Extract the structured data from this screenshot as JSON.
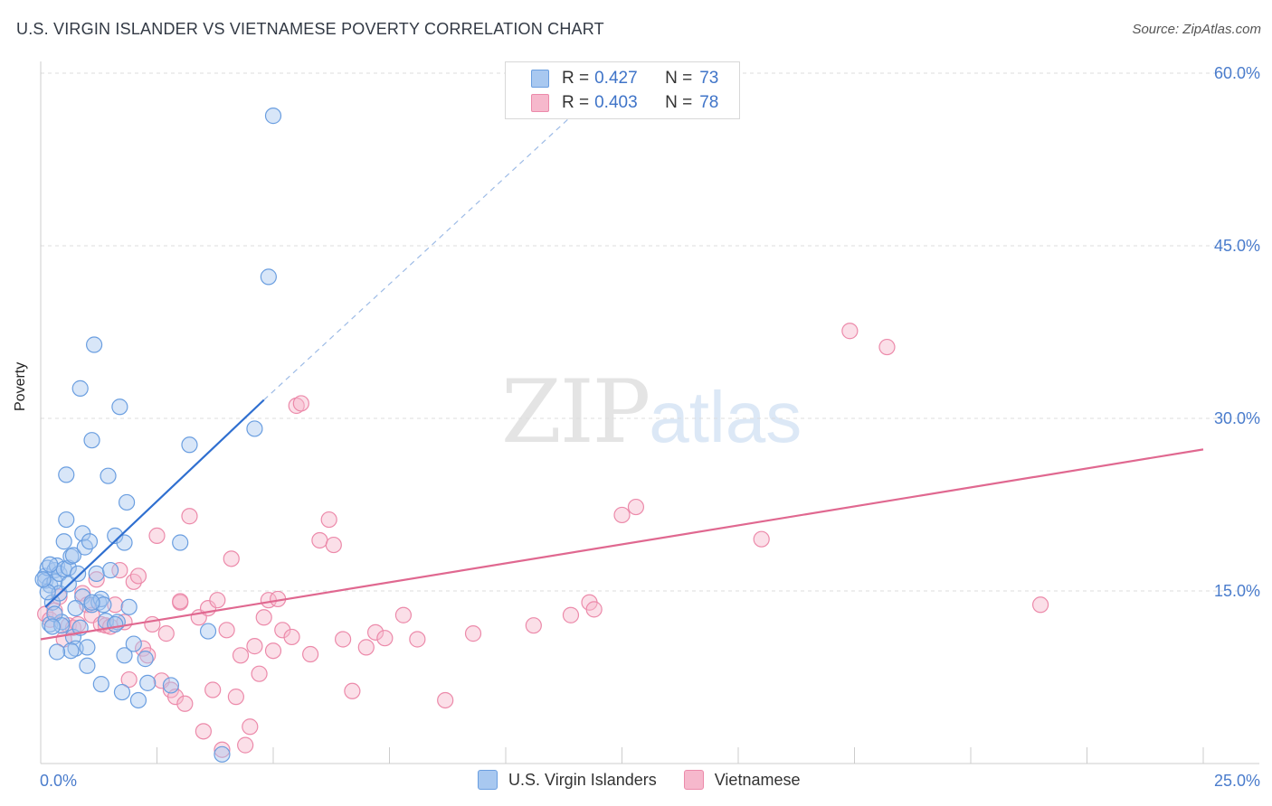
{
  "title": "U.S. VIRGIN ISLANDER VS VIETNAMESE POVERTY CORRELATION CHART",
  "source": "Source: ZipAtlas.com",
  "watermark": {
    "zip": "ZIP",
    "atlas": "atlas"
  },
  "colors": {
    "blue_fill": "#a8c8f0",
    "blue_stroke": "#6a9ee0",
    "blue_line": "#2f6fd0",
    "pink_fill": "#f6b8cc",
    "pink_stroke": "#ec8aaa",
    "pink_line": "#e06890",
    "grid": "#dddddd"
  },
  "legend": {
    "rows": [
      {
        "r_label": "R =",
        "r_value": "0.427",
        "n_label": "N =",
        "n_value": "73",
        "color": "#a8c8f0"
      },
      {
        "r_label": "R =",
        "r_value": "0.403",
        "n_label": "N =",
        "n_value": "78",
        "color": "#f6b8cc"
      }
    ]
  },
  "chart_data": {
    "type": "scatter",
    "title": "U.S. VIRGIN ISLANDER VS VIETNAMESE POVERTY CORRELATION CHART",
    "xlabel": "",
    "ylabel": "Poverty",
    "xlim": [
      0,
      25
    ],
    "ylim": [
      0,
      60
    ],
    "x_ticks": [
      "0.0%",
      "25.0%"
    ],
    "y_ticks": [
      {
        "value": 15,
        "label": "15.0%"
      },
      {
        "value": 30,
        "label": "30.0%"
      },
      {
        "value": 45,
        "label": "45.0%"
      },
      {
        "value": 60,
        "label": "60.0%"
      }
    ],
    "grid": true,
    "legend_position": "top-center",
    "series": [
      {
        "name": "U.S. Virgin Islanders",
        "color": "#a8c8f0",
        "trend": {
          "x": [
            0.1,
            4.8
          ],
          "y": [
            13.6,
            31.6
          ],
          "extend_to_x": 12.6,
          "extend_to_y": 60.7
        },
        "points": [
          [
            0.1,
            16.3
          ],
          [
            0.1,
            15.9
          ],
          [
            0.15,
            17.0
          ],
          [
            0.2,
            15.5
          ],
          [
            0.2,
            12.1
          ],
          [
            0.25,
            14.0
          ],
          [
            0.3,
            16.8
          ],
          [
            0.3,
            15.8
          ],
          [
            0.35,
            17.2
          ],
          [
            0.4,
            16.5
          ],
          [
            0.4,
            14.8
          ],
          [
            0.45,
            12.3
          ],
          [
            0.5,
            16.9
          ],
          [
            0.5,
            19.3
          ],
          [
            0.55,
            21.2
          ],
          [
            0.6,
            17.0
          ],
          [
            0.6,
            15.6
          ],
          [
            0.65,
            18.0
          ],
          [
            0.7,
            18.1
          ],
          [
            0.7,
            11.0
          ],
          [
            0.75,
            10.0
          ],
          [
            0.8,
            16.5
          ],
          [
            0.85,
            11.8
          ],
          [
            0.85,
            32.6
          ],
          [
            0.9,
            20.0
          ],
          [
            0.9,
            14.5
          ],
          [
            0.95,
            18.8
          ],
          [
            1.0,
            8.5
          ],
          [
            1.0,
            10.1
          ],
          [
            1.05,
            19.3
          ],
          [
            1.1,
            28.1
          ],
          [
            1.1,
            13.8
          ],
          [
            1.15,
            36.4
          ],
          [
            1.2,
            16.5
          ],
          [
            1.25,
            14.0
          ],
          [
            1.3,
            14.3
          ],
          [
            1.3,
            6.9
          ],
          [
            1.35,
            13.8
          ],
          [
            1.4,
            12.4
          ],
          [
            1.45,
            25.0
          ],
          [
            1.5,
            16.8
          ],
          [
            1.6,
            19.8
          ],
          [
            1.65,
            12.3
          ],
          [
            1.7,
            31.0
          ],
          [
            1.75,
            6.2
          ],
          [
            1.8,
            9.4
          ],
          [
            1.8,
            19.2
          ],
          [
            1.85,
            22.7
          ],
          [
            1.9,
            13.6
          ],
          [
            2.0,
            10.4
          ],
          [
            2.1,
            5.5
          ],
          [
            2.25,
            9.1
          ],
          [
            2.3,
            7.0
          ],
          [
            2.8,
            6.8
          ],
          [
            3.0,
            19.2
          ],
          [
            3.2,
            27.7
          ],
          [
            3.6,
            11.5
          ],
          [
            3.9,
            0.8
          ],
          [
            4.6,
            29.1
          ],
          [
            4.9,
            42.3
          ],
          [
            5.0,
            56.3
          ],
          [
            0.55,
            25.1
          ],
          [
            0.75,
            13.5
          ],
          [
            0.2,
            17.3
          ],
          [
            0.15,
            14.9
          ],
          [
            0.3,
            13.0
          ],
          [
            0.45,
            12.0
          ],
          [
            0.65,
            9.8
          ],
          [
            1.1,
            14.0
          ],
          [
            0.05,
            16.0
          ],
          [
            0.25,
            11.9
          ],
          [
            1.6,
            12.1
          ],
          [
            0.35,
            9.7
          ]
        ]
      },
      {
        "name": "Vietnamese",
        "color": "#f6b8cc",
        "trend": {
          "x": [
            0.0,
            25.0
          ],
          "y": [
            10.8,
            27.3
          ]
        },
        "points": [
          [
            0.1,
            13.0
          ],
          [
            0.2,
            12.5
          ],
          [
            0.3,
            13.3
          ],
          [
            0.4,
            14.5
          ],
          [
            0.5,
            10.8
          ],
          [
            0.6,
            12.0
          ],
          [
            0.7,
            11.8
          ],
          [
            0.8,
            12.1
          ],
          [
            0.9,
            14.8
          ],
          [
            1.0,
            13.8
          ],
          [
            1.1,
            12.9
          ],
          [
            1.2,
            16.0
          ],
          [
            1.3,
            12.1
          ],
          [
            1.4,
            12.0
          ],
          [
            1.5,
            11.9
          ],
          [
            1.6,
            13.8
          ],
          [
            1.7,
            16.8
          ],
          [
            1.8,
            12.3
          ],
          [
            1.9,
            7.3
          ],
          [
            2.0,
            15.8
          ],
          [
            2.1,
            16.3
          ],
          [
            2.2,
            10.0
          ],
          [
            2.3,
            9.4
          ],
          [
            2.4,
            12.1
          ],
          [
            2.5,
            19.8
          ],
          [
            2.6,
            7.2
          ],
          [
            2.7,
            11.3
          ],
          [
            2.8,
            6.4
          ],
          [
            2.9,
            5.8
          ],
          [
            3.0,
            14.0
          ],
          [
            3.1,
            5.2
          ],
          [
            3.2,
            21.5
          ],
          [
            3.4,
            12.7
          ],
          [
            3.5,
            2.8
          ],
          [
            3.6,
            13.5
          ],
          [
            3.7,
            6.4
          ],
          [
            3.8,
            14.2
          ],
          [
            3.9,
            1.2
          ],
          [
            4.0,
            11.6
          ],
          [
            4.1,
            17.8
          ],
          [
            4.2,
            5.8
          ],
          [
            4.3,
            9.4
          ],
          [
            4.4,
            1.6
          ],
          [
            4.5,
            3.2
          ],
          [
            4.6,
            10.2
          ],
          [
            4.7,
            7.8
          ],
          [
            4.8,
            12.7
          ],
          [
            4.9,
            14.2
          ],
          [
            5.0,
            9.8
          ],
          [
            5.1,
            14.3
          ],
          [
            5.2,
            11.6
          ],
          [
            5.4,
            11.0
          ],
          [
            5.5,
            31.1
          ],
          [
            5.6,
            31.3
          ],
          [
            5.8,
            9.5
          ],
          [
            6.0,
            19.4
          ],
          [
            6.2,
            21.2
          ],
          [
            6.3,
            19.0
          ],
          [
            6.5,
            10.8
          ],
          [
            6.7,
            6.3
          ],
          [
            7.0,
            10.1
          ],
          [
            7.2,
            11.4
          ],
          [
            7.4,
            10.9
          ],
          [
            7.8,
            12.9
          ],
          [
            8.1,
            10.8
          ],
          [
            8.7,
            5.5
          ],
          [
            9.3,
            11.3
          ],
          [
            10.6,
            12.0
          ],
          [
            11.4,
            12.9
          ],
          [
            11.8,
            14.0
          ],
          [
            11.9,
            13.4
          ],
          [
            12.5,
            21.6
          ],
          [
            12.8,
            22.3
          ],
          [
            15.5,
            19.5
          ],
          [
            17.4,
            37.6
          ],
          [
            18.2,
            36.2
          ],
          [
            21.5,
            13.8
          ],
          [
            3.0,
            14.1
          ]
        ]
      }
    ]
  }
}
